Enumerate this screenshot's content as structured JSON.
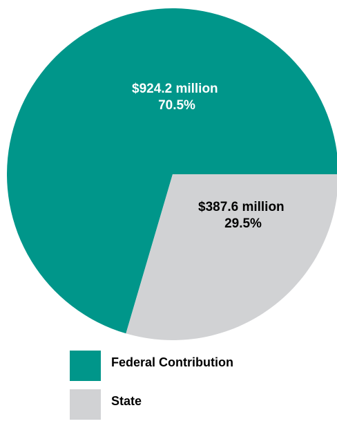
{
  "chart_data": {
    "type": "pie",
    "title": "",
    "slices": [
      {
        "name": "Federal Contribution",
        "value": 924.2,
        "percent": 70.5,
        "value_label": "$924.2 million",
        "percent_label": "70.5%",
        "color": "#00968A",
        "text_color": "#ffffff"
      },
      {
        "name": "State",
        "value": 387.6,
        "percent": 29.5,
        "value_label": "$387.6 million",
        "percent_label": "29.5%",
        "color": "#D1D2D4",
        "text_color": "#000000"
      }
    ],
    "legend_position": "bottom-left"
  }
}
